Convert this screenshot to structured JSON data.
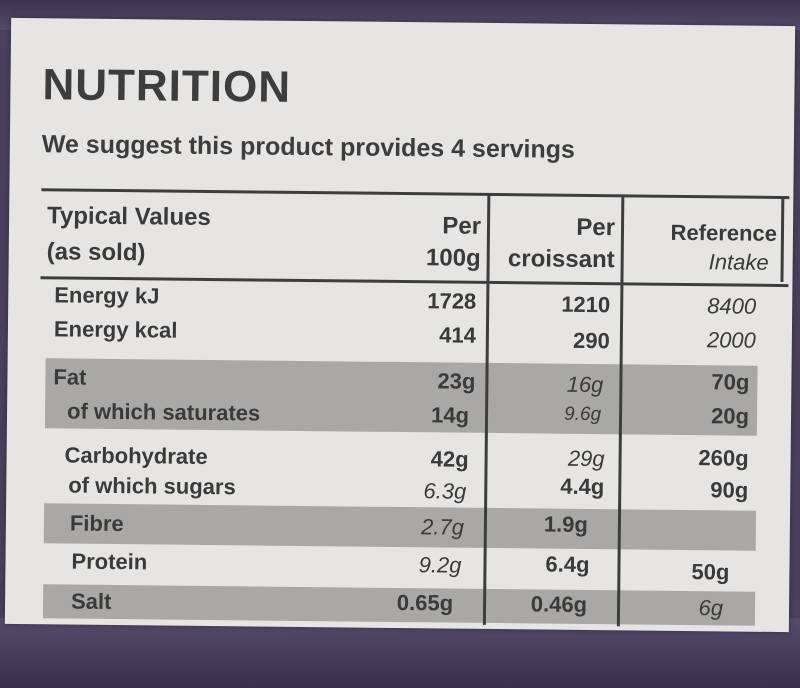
{
  "panel": {
    "title": "NUTRITION",
    "subtitle": "We suggest this product provides 4 servings"
  },
  "table": {
    "headers": {
      "col1_line1": "Typical Values",
      "col1_line2": "(as sold)",
      "col2_line1": "Per",
      "col2_line2": "100g",
      "col3_line1": "Per",
      "col3_line2": "croissant",
      "col4_line1": "Reference",
      "col4_line2": "Intake"
    },
    "rows": [
      {
        "label": "Energy kJ",
        "per100g": "1728",
        "perCroissant": "1210",
        "ri": "8400"
      },
      {
        "label": "Energy kcal",
        "per100g": "414",
        "perCroissant": "290",
        "ri": "2000"
      },
      {
        "label": "Fat",
        "per100g": "23g",
        "perCroissant": "16g",
        "ri": "70g"
      },
      {
        "label": "of which saturates",
        "per100g": "14g",
        "perCroissant": "9.6g",
        "ri": "20g"
      },
      {
        "label": "Carbohydrate",
        "per100g": "42g",
        "perCroissant": "29g",
        "ri": "260g"
      },
      {
        "label": "of which sugars",
        "per100g": "6.3g",
        "perCroissant": "4.4g",
        "ri": "90g"
      },
      {
        "label": "Fibre",
        "per100g": "2.7g",
        "perCroissant": "1.9g",
        "ri": ""
      },
      {
        "label": "Protein",
        "per100g": "9.2g",
        "perCroissant": "6.4g",
        "ri": "50g"
      },
      {
        "label": "Salt",
        "per100g": "0.65g",
        "perCroissant": "0.46g",
        "ri": "6g"
      }
    ]
  }
}
